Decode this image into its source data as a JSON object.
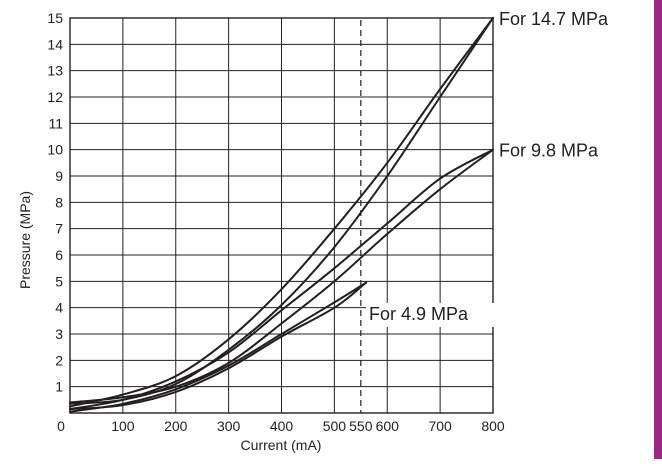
{
  "chart_data": {
    "type": "line",
    "xlabel": "Current (mA)",
    "ylabel": "Pressure (MPa)",
    "xlim": [
      0,
      800
    ],
    "ylim": [
      0,
      15
    ],
    "x_ticks": [
      0,
      100,
      200,
      300,
      400,
      500,
      550,
      600,
      700,
      800
    ],
    "y_ticks": [
      1,
      2,
      3,
      4,
      5,
      6,
      7,
      8,
      9,
      10,
      11,
      12,
      13,
      14,
      15
    ],
    "grid": true,
    "reference_line_x": 550,
    "series": [
      {
        "name": "For 14.7 MPa",
        "label_at": [
          800,
          15
        ],
        "x": [
          0,
          100,
          200,
          300,
          400,
          500,
          600,
          700,
          800
        ],
        "values": [
          0.25,
          0.7,
          1.4,
          2.8,
          4.7,
          7.0,
          9.5,
          12.3,
          15.0
        ]
      },
      {
        "x": [
          0,
          100,
          200,
          300,
          400,
          500,
          600,
          700,
          800
        ],
        "values": [
          0.35,
          0.5,
          1.1,
          2.4,
          4.1,
          6.3,
          9.0,
          12.0,
          15.0
        ]
      },
      {
        "name": "For 9.8 MPa",
        "label_at": [
          800,
          10
        ],
        "x": [
          0,
          100,
          200,
          300,
          400,
          500,
          600,
          700,
          800
        ],
        "values": [
          0.15,
          0.5,
          1.2,
          2.3,
          3.9,
          5.5,
          7.2,
          8.9,
          10.0
        ]
      },
      {
        "x": [
          0,
          100,
          200,
          300,
          400,
          500,
          600,
          700,
          800
        ],
        "values": [
          0.4,
          0.6,
          1.0,
          1.9,
          3.4,
          5.0,
          6.8,
          8.5,
          10.0
        ]
      },
      {
        "name": "For 4.9 MPa",
        "label_at": [
          575,
          3.8
        ],
        "x": [
          0,
          100,
          200,
          300,
          400,
          500,
          560
        ],
        "values": [
          0.05,
          0.35,
          0.9,
          1.8,
          3.0,
          4.2,
          4.95
        ]
      },
      {
        "x": [
          0,
          100,
          200,
          300,
          400,
          500,
          560
        ],
        "values": [
          0.15,
          0.3,
          0.8,
          1.7,
          2.9,
          4.0,
          4.95
        ]
      }
    ]
  }
}
